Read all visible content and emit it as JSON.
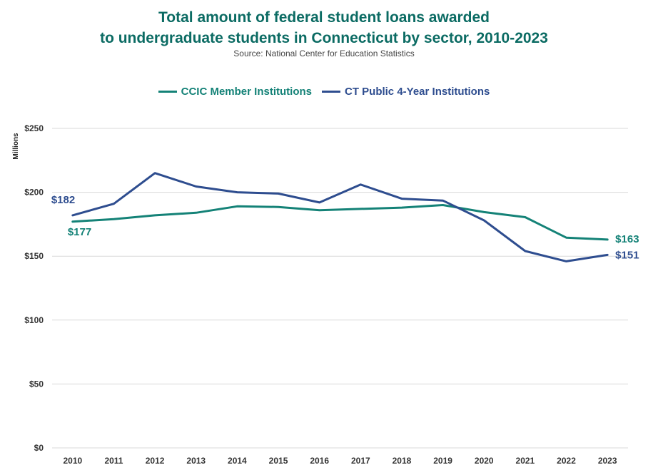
{
  "colors": {
    "title": "#0b6b63",
    "ccic": "#148277",
    "public": "#2e4d8f",
    "grid": "#d9d9d9"
  },
  "chart_data": {
    "type": "line",
    "title_line1": "Total amount of federal student loans awarded",
    "title_line2": "to undergraduate students in Connecticut by sector, 2010-2023",
    "subtitle": "Source: National Center for Education Statistics",
    "ylabel": "Millions",
    "xlabel": "",
    "ylim": [
      0,
      250
    ],
    "yticks": [
      0,
      50,
      100,
      150,
      200,
      250
    ],
    "ytick_labels": [
      "$0",
      "$50",
      "$100",
      "$150",
      "$200",
      "$250"
    ],
    "grid": true,
    "legend_position": "top",
    "categories": [
      "2010",
      "2011",
      "2012",
      "2013",
      "2014",
      "2015",
      "2016",
      "2017",
      "2018",
      "2019",
      "2020",
      "2021",
      "2022",
      "2023"
    ],
    "series": [
      {
        "name": "CCIC Member Institutions",
        "values": [
          177,
          179,
          182,
          184,
          189,
          188.5,
          186,
          187,
          188,
          190,
          184.5,
          180.5,
          164.5,
          163
        ],
        "start_label": "$177",
        "end_label": "$163"
      },
      {
        "name": "CT Public 4-Year Institutions",
        "values": [
          182,
          191,
          215,
          204.5,
          200,
          199,
          192,
          206,
          195,
          193.5,
          178,
          154,
          146,
          151
        ],
        "start_label": "$182",
        "end_label": "$151"
      }
    ]
  }
}
